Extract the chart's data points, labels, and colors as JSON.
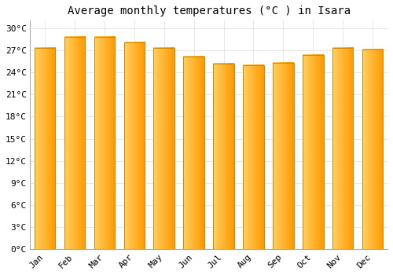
{
  "title": "Average monthly temperatures (°C ) in Isara",
  "months": [
    "Jan",
    "Feb",
    "Mar",
    "Apr",
    "May",
    "Jun",
    "Jul",
    "Aug",
    "Sep",
    "Oct",
    "Nov",
    "Dec"
  ],
  "values": [
    27.3,
    28.8,
    28.8,
    28.1,
    27.3,
    26.1,
    25.2,
    25.0,
    25.3,
    26.3,
    27.3,
    27.1
  ],
  "bar_color_main": "#FFA500",
  "bar_color_light": "#FFD050",
  "bar_color_edge": "#CC8800",
  "ylim": [
    0,
    31
  ],
  "yticks": [
    0,
    3,
    6,
    9,
    12,
    15,
    18,
    21,
    24,
    27,
    30
  ],
  "ytick_labels": [
    "0°C",
    "3°C",
    "6°C",
    "9°C",
    "12°C",
    "15°C",
    "18°C",
    "21°C",
    "24°C",
    "27°C",
    "30°C"
  ],
  "bg_color": "#FFFFFF",
  "grid_color": "#DDDDDD",
  "title_fontsize": 10,
  "tick_fontsize": 8,
  "font_family": "monospace",
  "bar_width": 0.7
}
